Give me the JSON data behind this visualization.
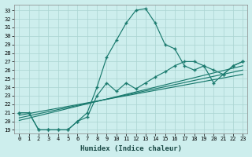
{
  "xlabel": "Humidex (Indice chaleur)",
  "bg_color": "#cdeeed",
  "grid_color": "#aad4d1",
  "line_color": "#1a7a6e",
  "xlim_min": -0.5,
  "xlim_max": 23.5,
  "ylim_min": 18.6,
  "ylim_max": 33.7,
  "curve1_x": [
    0,
    1,
    2,
    3,
    4,
    5,
    6,
    7,
    8,
    9,
    10,
    11,
    12,
    13,
    14,
    15,
    16,
    17,
    18,
    19,
    20,
    21,
    22,
    23
  ],
  "curve1_y": [
    21.0,
    21.0,
    19.0,
    19.0,
    19.0,
    19.0,
    20.0,
    21.0,
    24.0,
    27.5,
    29.5,
    31.5,
    33.0,
    33.2,
    31.5,
    29.0,
    28.5,
    26.5,
    26.0,
    26.5,
    26.0,
    25.5,
    26.5,
    27.0
  ],
  "curve2_x": [
    0,
    1,
    2,
    3,
    4,
    5,
    6,
    7,
    8,
    9,
    10,
    11,
    12,
    13,
    14,
    15,
    16,
    17,
    18,
    19,
    20,
    21,
    22,
    23
  ],
  "curve2_y": [
    21.0,
    21.0,
    19.0,
    19.0,
    19.0,
    19.0,
    20.0,
    20.5,
    23.0,
    24.5,
    23.5,
    24.5,
    23.8,
    24.5,
    25.2,
    25.8,
    26.5,
    27.0,
    27.0,
    26.5,
    24.5,
    25.5,
    26.5,
    27.0
  ],
  "line1_x": [
    0,
    23
  ],
  "line1_y": [
    20.7,
    25.5
  ],
  "line2_x": [
    0,
    23
  ],
  "line2_y": [
    20.4,
    26.0
  ],
  "line3_x": [
    0,
    23
  ],
  "line3_y": [
    20.1,
    26.5
  ]
}
